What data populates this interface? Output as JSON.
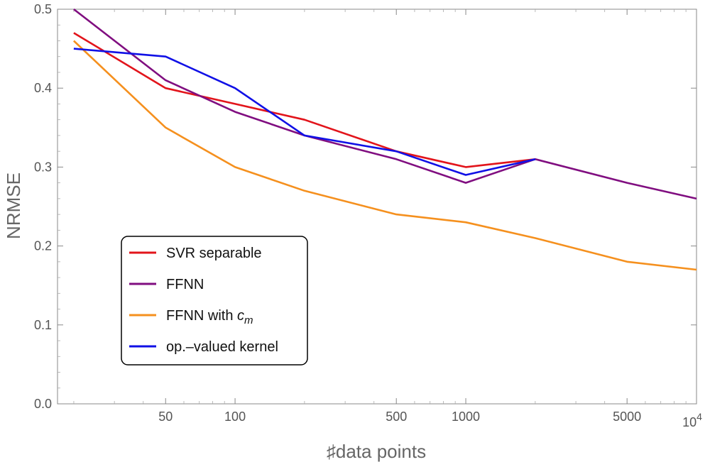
{
  "chart_data": {
    "type": "line",
    "xscale": "log",
    "xlabel": "♯data points",
    "ylabel": "NRMSE",
    "xlim": [
      17,
      10000
    ],
    "ylim": [
      0,
      0.5
    ],
    "xticks": [
      {
        "value": 50,
        "label": "50"
      },
      {
        "value": 100,
        "label": "100"
      },
      {
        "value": 500,
        "label": "500"
      },
      {
        "value": 1000,
        "label": "1000"
      },
      {
        "value": 5000,
        "label": "5000"
      }
    ],
    "xtick_last": {
      "value": 10000,
      "base": "10",
      "exp": "4"
    },
    "yticks": [
      {
        "value": 0.0,
        "label": "0.0"
      },
      {
        "value": 0.1,
        "label": "0.1"
      },
      {
        "value": 0.2,
        "label": "0.2"
      },
      {
        "value": 0.3,
        "label": "0.3"
      },
      {
        "value": 0.4,
        "label": "0.4"
      },
      {
        "value": 0.5,
        "label": "0.5"
      }
    ],
    "legend_position": "bottom-left",
    "series": [
      {
        "name": "SVR separable",
        "color": "#e2141b",
        "x": [
          20,
          50,
          100,
          200,
          500,
          1000,
          2000
        ],
        "y": [
          0.47,
          0.4,
          0.38,
          0.36,
          0.32,
          0.3,
          0.31
        ]
      },
      {
        "name": "FFNN",
        "color": "#800e80",
        "x": [
          20,
          50,
          100,
          200,
          500,
          1000,
          2000,
          5000,
          10000
        ],
        "y": [
          0.5,
          0.41,
          0.37,
          0.34,
          0.31,
          0.28,
          0.31,
          0.28,
          0.26
        ]
      },
      {
        "name": "FFNN with c_m",
        "color": "#f5901e",
        "x": [
          20,
          50,
          100,
          200,
          500,
          1000,
          2000,
          5000,
          10000
        ],
        "y": [
          0.46,
          0.35,
          0.3,
          0.27,
          0.24,
          0.23,
          0.21,
          0.18,
          0.17
        ]
      },
      {
        "name": "op.-valued kernel",
        "color": "#1010e6",
        "x": [
          20,
          50,
          100,
          200,
          500,
          1000,
          2000
        ],
        "y": [
          0.45,
          0.44,
          0.4,
          0.34,
          0.32,
          0.29,
          0.31
        ]
      }
    ]
  },
  "legend": {
    "items": [
      {
        "label": "SVR separable"
      },
      {
        "label": "FFNN"
      },
      {
        "label": "FFNN with ",
        "math_base": "c",
        "math_sub": "m"
      },
      {
        "label": "op.–valued kernel"
      }
    ]
  }
}
